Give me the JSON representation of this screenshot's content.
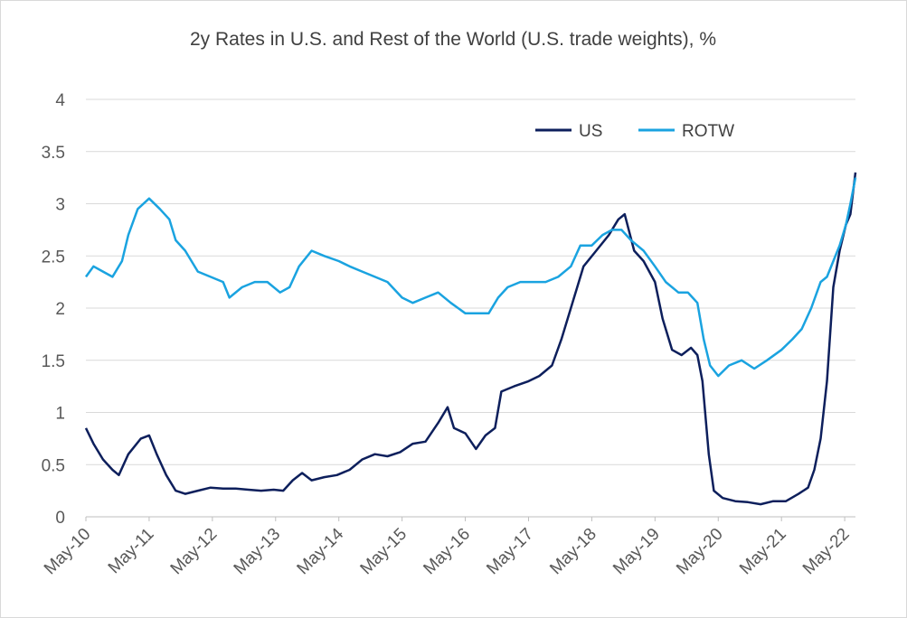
{
  "chart_data": {
    "type": "line",
    "title": "2y Rates in U.S. and Rest of the World (U.S. trade weights), %",
    "xlabel": "",
    "ylabel": "",
    "ylim": [
      0,
      4
    ],
    "yticks": [
      "0",
      "0.5",
      "1",
      "1.5",
      "2",
      "2.5",
      "3",
      "3.5",
      "4"
    ],
    "xlim": [
      2010.33,
      2022.5
    ],
    "xticks": [
      {
        "label": "May-10",
        "x": 2010.33
      },
      {
        "label": "May-11",
        "x": 2011.33
      },
      {
        "label": "May-12",
        "x": 2012.33
      },
      {
        "label": "May-13",
        "x": 2013.33
      },
      {
        "label": "May-14",
        "x": 2014.33
      },
      {
        "label": "May-15",
        "x": 2015.33
      },
      {
        "label": "May-16",
        "x": 2016.33
      },
      {
        "label": "May-17",
        "x": 2017.33
      },
      {
        "label": "May-18",
        "x": 2018.33
      },
      {
        "label": "May-19",
        "x": 2019.33
      },
      {
        "label": "May-20",
        "x": 2020.33
      },
      {
        "label": "May-21",
        "x": 2021.33
      },
      {
        "label": "May-22",
        "x": 2022.33
      }
    ],
    "grid": "horizontal",
    "legend": "top-right",
    "series": [
      {
        "name": "US",
        "color": "#0d1f5c",
        "points": [
          [
            2010.33,
            0.85
          ],
          [
            2010.45,
            0.7
          ],
          [
            2010.6,
            0.55
          ],
          [
            2010.75,
            0.45
          ],
          [
            2010.85,
            0.4
          ],
          [
            2011.0,
            0.6
          ],
          [
            2011.2,
            0.75
          ],
          [
            2011.33,
            0.78
          ],
          [
            2011.45,
            0.6
          ],
          [
            2011.6,
            0.4
          ],
          [
            2011.75,
            0.25
          ],
          [
            2011.9,
            0.22
          ],
          [
            2012.1,
            0.25
          ],
          [
            2012.3,
            0.28
          ],
          [
            2012.5,
            0.27
          ],
          [
            2012.7,
            0.27
          ],
          [
            2012.9,
            0.26
          ],
          [
            2013.1,
            0.25
          ],
          [
            2013.3,
            0.26
          ],
          [
            2013.45,
            0.25
          ],
          [
            2013.6,
            0.35
          ],
          [
            2013.75,
            0.42
          ],
          [
            2013.9,
            0.35
          ],
          [
            2014.1,
            0.38
          ],
          [
            2014.3,
            0.4
          ],
          [
            2014.5,
            0.45
          ],
          [
            2014.7,
            0.55
          ],
          [
            2014.9,
            0.6
          ],
          [
            2015.1,
            0.58
          ],
          [
            2015.3,
            0.62
          ],
          [
            2015.5,
            0.7
          ],
          [
            2015.7,
            0.72
          ],
          [
            2015.9,
            0.9
          ],
          [
            2016.05,
            1.05
          ],
          [
            2016.15,
            0.85
          ],
          [
            2016.33,
            0.8
          ],
          [
            2016.5,
            0.65
          ],
          [
            2016.65,
            0.78
          ],
          [
            2016.8,
            0.85
          ],
          [
            2016.9,
            1.2
          ],
          [
            2017.1,
            1.25
          ],
          [
            2017.33,
            1.3
          ],
          [
            2017.5,
            1.35
          ],
          [
            2017.7,
            1.45
          ],
          [
            2017.85,
            1.7
          ],
          [
            2018.0,
            2.0
          ],
          [
            2018.2,
            2.4
          ],
          [
            2018.4,
            2.55
          ],
          [
            2018.6,
            2.7
          ],
          [
            2018.75,
            2.85
          ],
          [
            2018.85,
            2.9
          ],
          [
            2019.0,
            2.55
          ],
          [
            2019.15,
            2.45
          ],
          [
            2019.33,
            2.25
          ],
          [
            2019.45,
            1.9
          ],
          [
            2019.6,
            1.6
          ],
          [
            2019.75,
            1.55
          ],
          [
            2019.9,
            1.62
          ],
          [
            2020.0,
            1.55
          ],
          [
            2020.08,
            1.3
          ],
          [
            2020.18,
            0.6
          ],
          [
            2020.26,
            0.25
          ],
          [
            2020.4,
            0.18
          ],
          [
            2020.6,
            0.15
          ],
          [
            2020.8,
            0.14
          ],
          [
            2021.0,
            0.12
          ],
          [
            2021.2,
            0.15
          ],
          [
            2021.4,
            0.15
          ],
          [
            2021.6,
            0.22
          ],
          [
            2021.75,
            0.28
          ],
          [
            2021.85,
            0.45
          ],
          [
            2021.95,
            0.75
          ],
          [
            2022.05,
            1.3
          ],
          [
            2022.15,
            2.2
          ],
          [
            2022.25,
            2.55
          ],
          [
            2022.35,
            2.8
          ],
          [
            2022.42,
            2.9
          ],
          [
            2022.5,
            3.3
          ]
        ]
      },
      {
        "name": "ROTW",
        "color": "#1aa3e0",
        "points": [
          [
            2010.33,
            2.3
          ],
          [
            2010.45,
            2.4
          ],
          [
            2010.6,
            2.35
          ],
          [
            2010.75,
            2.3
          ],
          [
            2010.9,
            2.45
          ],
          [
            2011.0,
            2.7
          ],
          [
            2011.15,
            2.95
          ],
          [
            2011.33,
            3.05
          ],
          [
            2011.5,
            2.95
          ],
          [
            2011.65,
            2.85
          ],
          [
            2011.75,
            2.65
          ],
          [
            2011.9,
            2.55
          ],
          [
            2012.1,
            2.35
          ],
          [
            2012.3,
            2.3
          ],
          [
            2012.5,
            2.25
          ],
          [
            2012.6,
            2.1
          ],
          [
            2012.8,
            2.2
          ],
          [
            2013.0,
            2.25
          ],
          [
            2013.2,
            2.25
          ],
          [
            2013.4,
            2.15
          ],
          [
            2013.55,
            2.2
          ],
          [
            2013.7,
            2.4
          ],
          [
            2013.9,
            2.55
          ],
          [
            2014.1,
            2.5
          ],
          [
            2014.33,
            2.45
          ],
          [
            2014.5,
            2.4
          ],
          [
            2014.7,
            2.35
          ],
          [
            2014.9,
            2.3
          ],
          [
            2015.1,
            2.25
          ],
          [
            2015.33,
            2.1
          ],
          [
            2015.5,
            2.05
          ],
          [
            2015.7,
            2.1
          ],
          [
            2015.9,
            2.15
          ],
          [
            2016.1,
            2.05
          ],
          [
            2016.33,
            1.95
          ],
          [
            2016.5,
            1.95
          ],
          [
            2016.7,
            1.95
          ],
          [
            2016.85,
            2.1
          ],
          [
            2017.0,
            2.2
          ],
          [
            2017.2,
            2.25
          ],
          [
            2017.4,
            2.25
          ],
          [
            2017.6,
            2.25
          ],
          [
            2017.8,
            2.3
          ],
          [
            2018.0,
            2.4
          ],
          [
            2018.15,
            2.6
          ],
          [
            2018.33,
            2.6
          ],
          [
            2018.5,
            2.7
          ],
          [
            2018.65,
            2.75
          ],
          [
            2018.8,
            2.75
          ],
          [
            2018.95,
            2.65
          ],
          [
            2019.15,
            2.55
          ],
          [
            2019.33,
            2.4
          ],
          [
            2019.5,
            2.25
          ],
          [
            2019.7,
            2.15
          ],
          [
            2019.85,
            2.15
          ],
          [
            2020.0,
            2.05
          ],
          [
            2020.1,
            1.7
          ],
          [
            2020.2,
            1.45
          ],
          [
            2020.33,
            1.35
          ],
          [
            2020.5,
            1.45
          ],
          [
            2020.7,
            1.5
          ],
          [
            2020.9,
            1.42
          ],
          [
            2021.1,
            1.5
          ],
          [
            2021.33,
            1.6
          ],
          [
            2021.5,
            1.7
          ],
          [
            2021.65,
            1.8
          ],
          [
            2021.8,
            2.0
          ],
          [
            2021.95,
            2.25
          ],
          [
            2022.05,
            2.3
          ],
          [
            2022.15,
            2.45
          ],
          [
            2022.25,
            2.6
          ],
          [
            2022.35,
            2.8
          ],
          [
            2022.42,
            3.0
          ],
          [
            2022.5,
            3.25
          ]
        ]
      }
    ]
  }
}
